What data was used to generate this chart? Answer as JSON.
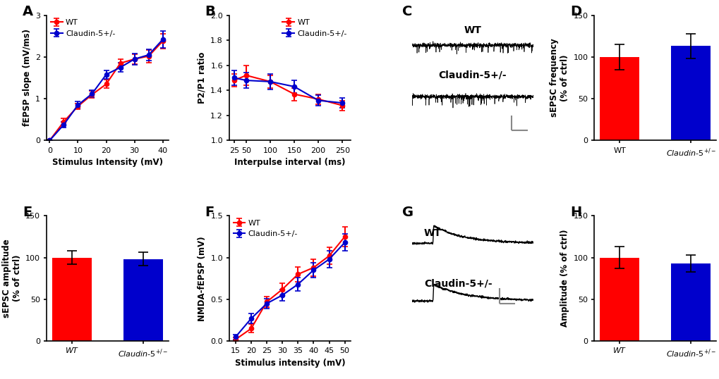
{
  "panel_A": {
    "xlabel": "Stimulus Intensity (mV)",
    "ylabel": "fEPSP slope (mV/ms)",
    "x": [
      0,
      5,
      10,
      15,
      20,
      25,
      30,
      35,
      40
    ],
    "wt_y": [
      0.0,
      0.45,
      0.82,
      1.1,
      1.35,
      1.85,
      1.95,
      2.02,
      2.38
    ],
    "wt_err": [
      0.0,
      0.08,
      0.07,
      0.08,
      0.1,
      0.1,
      0.12,
      0.15,
      0.18
    ],
    "ko_y": [
      0.0,
      0.38,
      0.85,
      1.12,
      1.58,
      1.75,
      1.95,
      2.05,
      2.42
    ],
    "ko_err": [
      0.0,
      0.07,
      0.08,
      0.09,
      0.1,
      0.11,
      0.13,
      0.14,
      0.2
    ],
    "ylim": [
      0,
      3.0
    ],
    "yticks": [
      0,
      1,
      2,
      3
    ],
    "xticks": [
      0,
      10,
      20,
      30,
      40
    ]
  },
  "panel_B": {
    "xlabel": "Interpulse interval (ms)",
    "ylabel": "P2/P1 ratio",
    "x": [
      25,
      50,
      100,
      150,
      200,
      250
    ],
    "wt_y": [
      1.48,
      1.52,
      1.47,
      1.37,
      1.33,
      1.28
    ],
    "wt_err": [
      0.05,
      0.08,
      0.05,
      0.05,
      0.04,
      0.04
    ],
    "ko_y": [
      1.5,
      1.48,
      1.47,
      1.43,
      1.32,
      1.3
    ],
    "ko_err": [
      0.06,
      0.06,
      0.06,
      0.05,
      0.04,
      0.04
    ],
    "ylim": [
      1.0,
      2.0
    ],
    "yticks": [
      1.0,
      1.2,
      1.4,
      1.6,
      1.8,
      2.0
    ],
    "xticks": [
      25,
      50,
      100,
      150,
      200,
      250
    ]
  },
  "panel_D": {
    "ylabel": "sEPSC frequency\n(% of ctrl)",
    "wt_val": 100,
    "wt_err": 15,
    "ko_val": 113,
    "ko_err": 15,
    "ylim": [
      0,
      150
    ],
    "yticks": [
      0,
      50,
      100,
      150
    ]
  },
  "panel_E": {
    "ylabel": "sEPSC amplitude\n(% of ctrl)",
    "wt_val": 100,
    "wt_err": 8,
    "ko_val": 98,
    "ko_err": 8,
    "ylim": [
      0,
      150
    ],
    "yticks": [
      0,
      50,
      100,
      150
    ]
  },
  "panel_F": {
    "xlabel": "Stimulus intensity (mV)",
    "ylabel": "NMDA-fEPSP (mV)",
    "x": [
      15,
      20,
      25,
      30,
      35,
      40,
      45,
      50
    ],
    "wt_y": [
      0.02,
      0.15,
      0.47,
      0.62,
      0.8,
      0.88,
      1.02,
      1.25
    ],
    "wt_err": [
      0.02,
      0.05,
      0.06,
      0.07,
      0.09,
      0.1,
      0.1,
      0.12
    ],
    "ko_y": [
      0.05,
      0.27,
      0.45,
      0.55,
      0.68,
      0.85,
      0.98,
      1.18
    ],
    "ko_err": [
      0.03,
      0.06,
      0.06,
      0.07,
      0.08,
      0.09,
      0.1,
      0.1
    ],
    "ylim": [
      0.0,
      1.5
    ],
    "yticks": [
      0.0,
      0.5,
      1.0,
      1.5
    ],
    "xticks": [
      15,
      20,
      25,
      30,
      35,
      40,
      45,
      50
    ]
  },
  "panel_H": {
    "ylabel": "Amplitude (% of ctrl)",
    "wt_val": 100,
    "wt_err": 13,
    "ko_val": 93,
    "ko_err": 10,
    "ylim": [
      0,
      150
    ],
    "yticks": [
      0,
      50,
      100,
      150
    ]
  },
  "colors": {
    "wt": "#FF0000",
    "ko": "#0000CC"
  },
  "legend_wt": "WT",
  "legend_ko": "Claudin-5+/-",
  "bg_color": "#FFFFFF"
}
